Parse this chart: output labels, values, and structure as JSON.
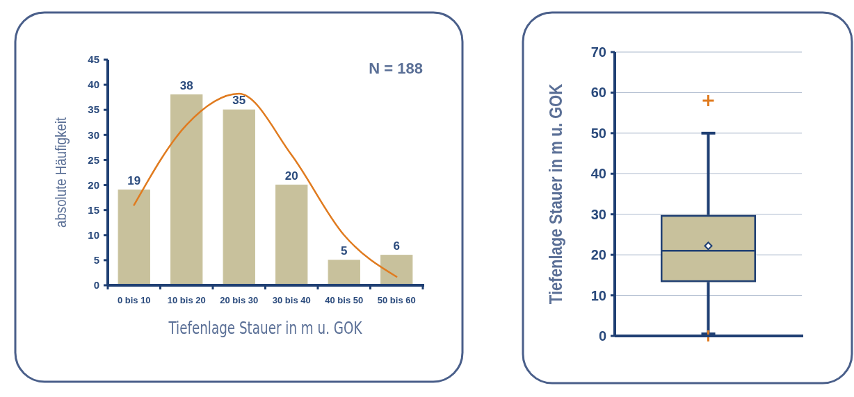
{
  "chart_data": [
    {
      "type": "bar",
      "xlabel": "Tiefenlage Stauer in m u. GOK",
      "ylabel": "absolute Häufigkeit",
      "annotations": [
        "N = 188"
      ],
      "categories": [
        "0 bis 10",
        "10 bis 20",
        "20 bis 30",
        "30 bis 40",
        "40 bis 50",
        "50 bis 60"
      ],
      "ylim": [
        0,
        45
      ],
      "yticks": [
        0,
        5,
        10,
        15,
        20,
        25,
        30,
        35,
        40,
        45
      ],
      "grid": false,
      "legend": false,
      "series": [
        {
          "color": "#c8c19c",
          "values": [
            19,
            38,
            35,
            20,
            5,
            6
          ],
          "value_labels": [
            "19",
            "38",
            "35",
            "20",
            "5",
            "6"
          ]
        },
        {
          "type": "line",
          "color": "#e07b1f",
          "values": [
            16,
            32,
            38.2,
            26,
            10,
            1.7
          ]
        }
      ]
    },
    {
      "type": "box",
      "ylabel": "Tiefenlage Stauer in m u. GOK",
      "categories": [
        null
      ],
      "ylim": [
        0,
        70
      ],
      "yticks": [
        0,
        10,
        20,
        30,
        40,
        50,
        60,
        70
      ],
      "grid": "y",
      "legend": false,
      "series": [
        {
          "color": "#c8c19c",
          "boxes": [
            {
              "low": 0.5,
              "q1": 13.5,
              "median": 21,
              "q3": 29.6,
              "high": 50,
              "mean": 22.2,
              "outliers": [
                58,
                0
              ]
            }
          ]
        }
      ]
    }
  ]
}
